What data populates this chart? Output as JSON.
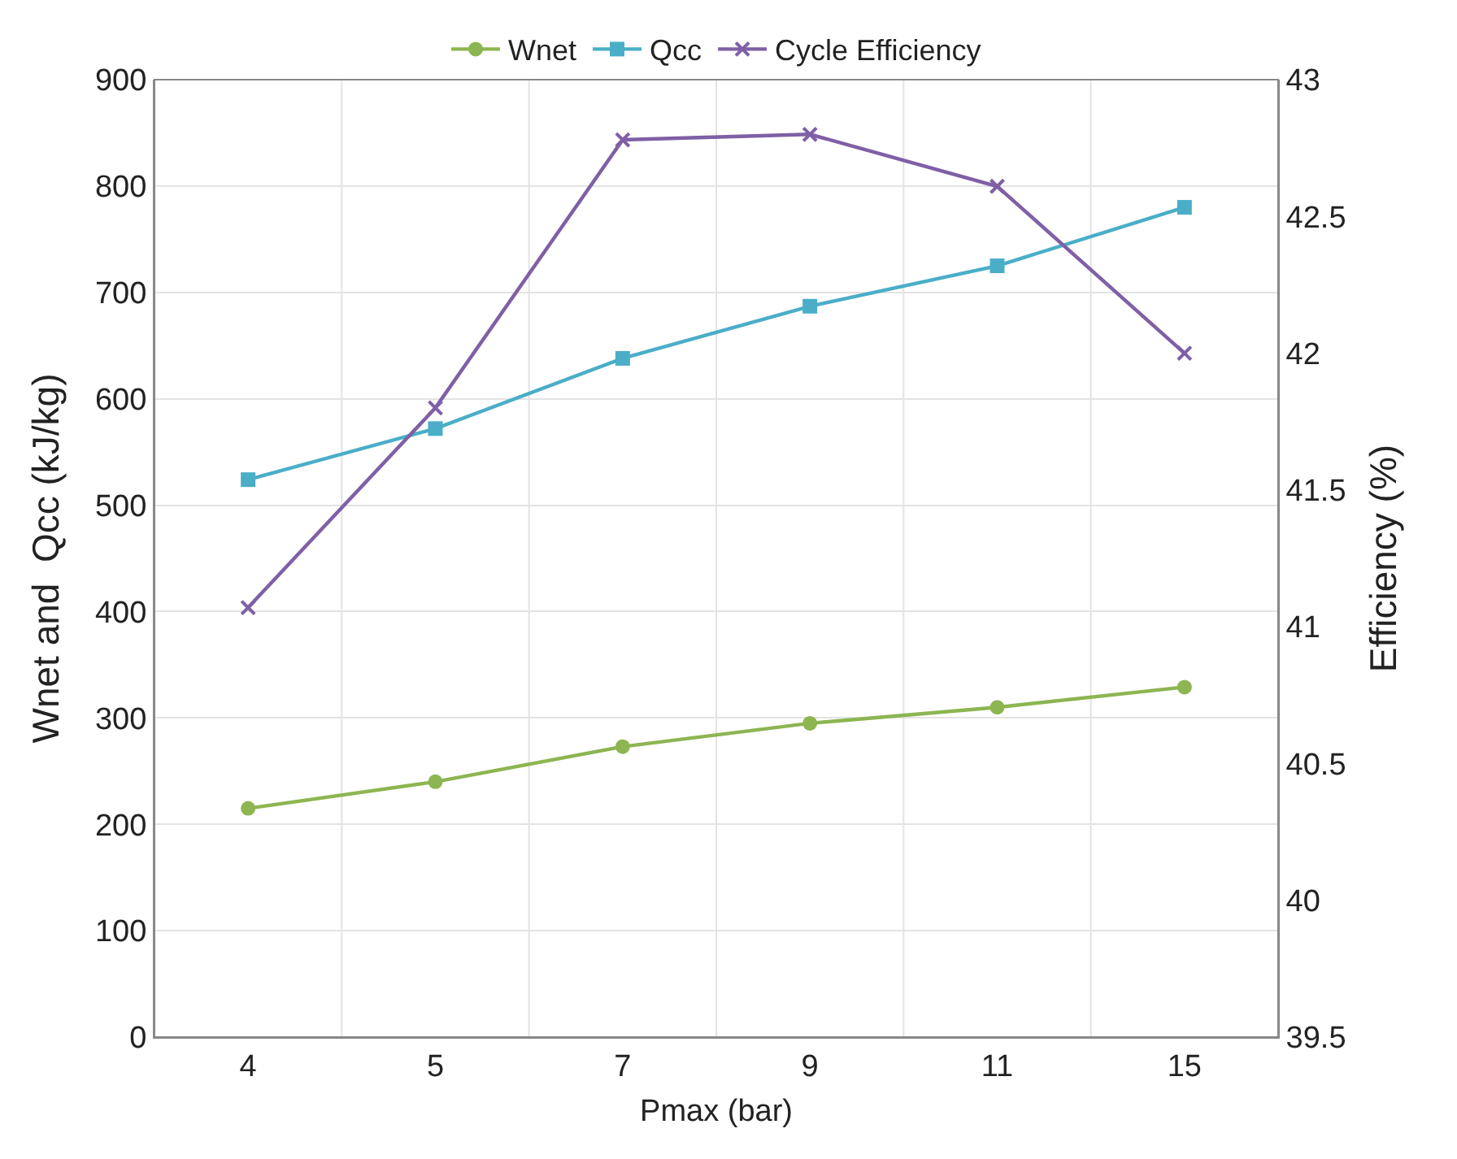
{
  "chart_data": {
    "type": "line",
    "xlabel": "Pmax (bar)",
    "ylabel": "Wnet and  Qcc (kJ/kg)",
    "y2label": "Efficiency (%)",
    "categories": [
      "4",
      "5",
      "7",
      "9",
      "11",
      "15"
    ],
    "series": [
      {
        "name": "Wnet",
        "color": "#8db551",
        "marker": "circle",
        "values": [
          215,
          240,
          273,
          295,
          310,
          329
        ]
      },
      {
        "name": "Qcc",
        "color": "#4aaec8",
        "marker": "square",
        "values": [
          524,
          572,
          638,
          687,
          725,
          780
        ]
      },
      {
        "name": "Cycle Efficiency",
        "color": "#7f5fa6",
        "marker": "cross",
        "axis": "y2",
        "values": [
          41.07,
          41.8,
          42.78,
          42.8,
          42.61,
          42.0
        ]
      }
    ],
    "ylim": [
      0,
      900
    ],
    "yticks": [
      0,
      100,
      200,
      300,
      400,
      500,
      600,
      700,
      800,
      900
    ],
    "y2lim": [
      39.5,
      43
    ],
    "y2ticks": [
      39.5,
      40,
      40.5,
      41,
      41.5,
      42,
      42.5,
      43
    ],
    "grid": true,
    "legend": "top",
    "line_style": "solid"
  }
}
